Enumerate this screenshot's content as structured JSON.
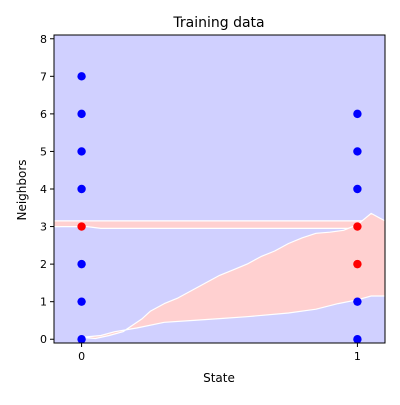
{
  "chart_data": {
    "type": "scatter",
    "title": "Training data",
    "xlabel": "State",
    "ylabel": "Neighbors",
    "xlim": [
      -0.1,
      1.1
    ],
    "ylim": [
      -0.1,
      8.1
    ],
    "x_ticks": [
      0,
      1
    ],
    "x_tick_labels": [
      "0",
      "1"
    ],
    "y_ticks": [
      0,
      1,
      2,
      3,
      4,
      5,
      6,
      7,
      8
    ],
    "y_tick_labels": [
      "0",
      "1",
      "2",
      "3",
      "4",
      "5",
      "6",
      "7",
      "8"
    ],
    "grid": false,
    "legend": "none",
    "background_color": "#d0d0ff",
    "series": [
      {
        "color": "#0000ff",
        "points": [
          [
            0,
            0
          ],
          [
            0,
            1
          ],
          [
            0,
            2
          ],
          [
            0,
            4
          ],
          [
            0,
            5
          ],
          [
            0,
            6
          ],
          [
            0,
            7
          ],
          [
            1,
            0
          ],
          [
            1,
            1
          ],
          [
            1,
            4
          ],
          [
            1,
            5
          ],
          [
            1,
            6
          ]
        ]
      },
      {
        "color": "#ff0000",
        "points": [
          [
            0,
            3
          ],
          [
            1,
            2
          ],
          [
            1,
            3
          ]
        ]
      }
    ],
    "decision_regions": [
      {
        "color": "#ffd0d0",
        "outline": [
          [
            -0.1,
            3.15
          ],
          [
            1.1,
            3.15
          ],
          [
            1.1,
            2.95
          ],
          [
            0.07,
            2.95
          ],
          [
            0.02,
            3.0
          ],
          [
            -0.1,
            3.0
          ]
        ]
      },
      {
        "color": "#ffd0d0",
        "outline": [
          [
            0.05,
            0.02
          ],
          [
            0.1,
            0.1
          ],
          [
            0.15,
            0.2
          ],
          [
            0.18,
            0.35
          ],
          [
            0.22,
            0.55
          ],
          [
            0.25,
            0.75
          ],
          [
            0.3,
            0.95
          ],
          [
            0.35,
            1.1
          ],
          [
            0.4,
            1.3
          ],
          [
            0.45,
            1.5
          ],
          [
            0.5,
            1.7
          ],
          [
            0.55,
            1.85
          ],
          [
            0.6,
            2.0
          ],
          [
            0.65,
            2.2
          ],
          [
            0.7,
            2.35
          ],
          [
            0.75,
            2.55
          ],
          [
            0.8,
            2.7
          ],
          [
            0.85,
            2.82
          ],
          [
            0.9,
            2.85
          ],
          [
            0.95,
            2.9
          ],
          [
            1.0,
            3.05
          ],
          [
            1.05,
            3.35
          ],
          [
            1.1,
            3.15
          ],
          [
            1.1,
            1.15
          ],
          [
            1.05,
            1.15
          ],
          [
            1.0,
            1.05
          ],
          [
            0.93,
            0.95
          ],
          [
            0.85,
            0.8
          ],
          [
            0.75,
            0.7
          ],
          [
            0.6,
            0.6
          ],
          [
            0.5,
            0.55
          ],
          [
            0.4,
            0.5
          ],
          [
            0.3,
            0.45
          ],
          [
            0.2,
            0.3
          ],
          [
            0.12,
            0.2
          ],
          [
            0.07,
            0.1
          ],
          [
            0.0,
            0.05
          ]
        ]
      }
    ]
  }
}
